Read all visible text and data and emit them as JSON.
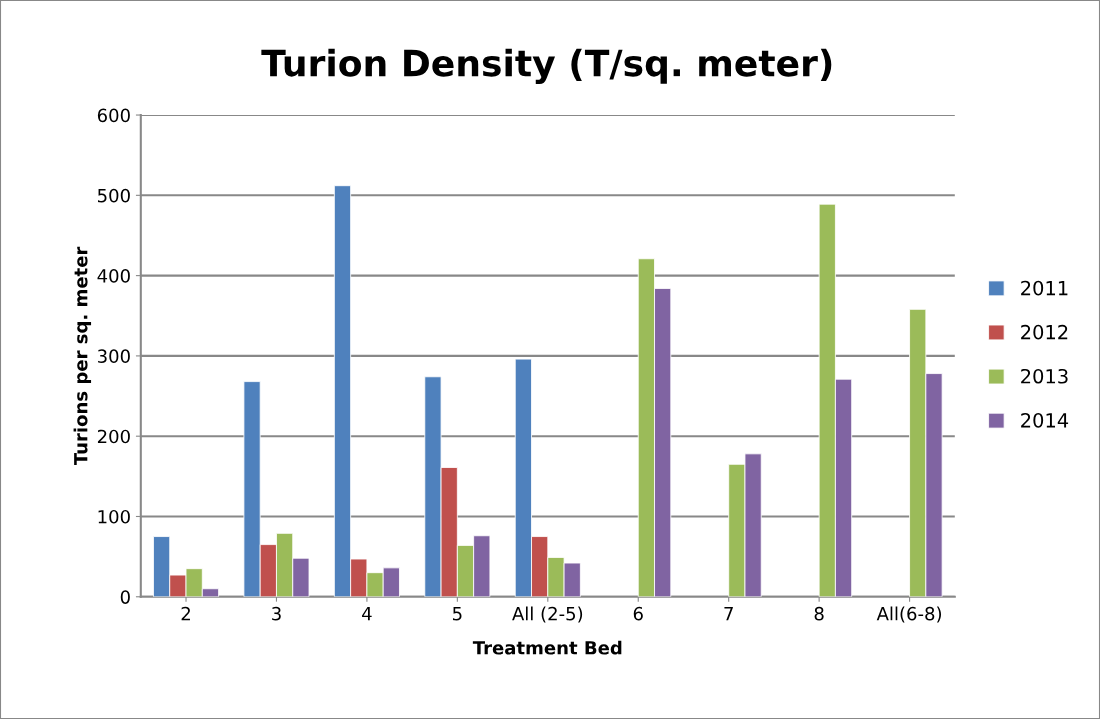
{
  "chart_data": {
    "type": "bar",
    "title": "Turion Density (T/sq. meter)",
    "xlabel": "Treatment Bed",
    "ylabel": "Turions per sq. meter",
    "categories": [
      "2",
      "3",
      "4",
      "5",
      "All (2-5)",
      "6",
      "7",
      "8",
      "All(6-8)"
    ],
    "series": [
      {
        "name": "2011",
        "color": "#4f81bd",
        "values": [
          75,
          268,
          512,
          274,
          296,
          null,
          null,
          null,
          null
        ]
      },
      {
        "name": "2012",
        "color": "#c0504d",
        "values": [
          27,
          65,
          47,
          161,
          75,
          null,
          null,
          null,
          null
        ]
      },
      {
        "name": "2013",
        "color": "#9bbb59",
        "values": [
          35,
          79,
          30,
          64,
          49,
          421,
          165,
          489,
          358
        ]
      },
      {
        "name": "2014",
        "color": "#8064a2",
        "values": [
          10,
          48,
          36,
          76,
          42,
          384,
          178,
          271,
          278
        ]
      }
    ],
    "ylim": [
      0,
      600
    ],
    "yticks": [
      0,
      100,
      200,
      300,
      400,
      500,
      600
    ],
    "grid": "y",
    "legend": "right"
  }
}
